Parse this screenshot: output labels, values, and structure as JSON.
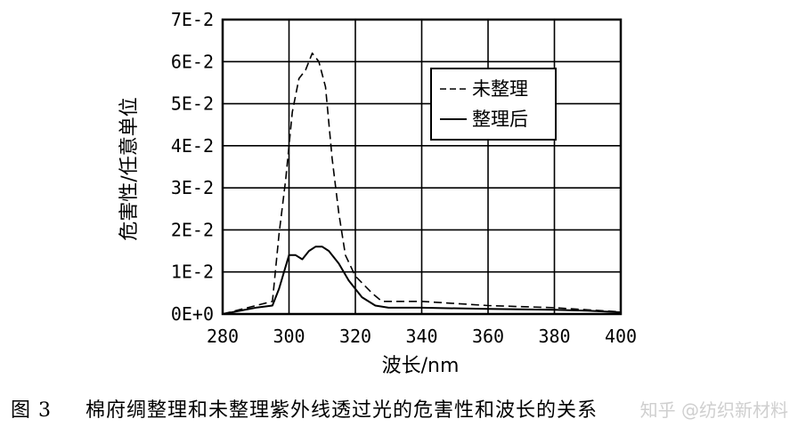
{
  "chart_data": {
    "type": "line",
    "xlabel": "波长/nm",
    "ylabel": "危害性/任意单位",
    "xlim": [
      280,
      400
    ],
    "ylim": [
      0,
      0.07
    ],
    "x_ticks": [
      "280",
      "300",
      "320",
      "340",
      "360",
      "380",
      "400"
    ],
    "y_ticks": [
      "0E+0",
      "1E-2",
      "2E-2",
      "3E-2",
      "4E-2",
      "5E-2",
      "6E-2",
      "7E-2"
    ],
    "grid": true,
    "legend_position": "top-right",
    "series": [
      {
        "name": "未整理",
        "style": "dashed",
        "color": "#000000",
        "points": [
          [
            280,
            0.0
          ],
          [
            290,
            0.002
          ],
          [
            295,
            0.003
          ],
          [
            297,
            0.019
          ],
          [
            299,
            0.032
          ],
          [
            301,
            0.048
          ],
          [
            303,
            0.056
          ],
          [
            305,
            0.058
          ],
          [
            307,
            0.062
          ],
          [
            309,
            0.06
          ],
          [
            311,
            0.054
          ],
          [
            313,
            0.037
          ],
          [
            315,
            0.024
          ],
          [
            317,
            0.014
          ],
          [
            320,
            0.009
          ],
          [
            325,
            0.005
          ],
          [
            328,
            0.003
          ],
          [
            340,
            0.003
          ],
          [
            360,
            0.002
          ],
          [
            380,
            0.0015
          ],
          [
            390,
            0.001
          ],
          [
            400,
            0.0005
          ]
        ]
      },
      {
        "name": "整理后",
        "style": "solid",
        "color": "#000000",
        "points": [
          [
            280,
            0.0
          ],
          [
            290,
            0.0015
          ],
          [
            295,
            0.002
          ],
          [
            297,
            0.006
          ],
          [
            300,
            0.014
          ],
          [
            302,
            0.014
          ],
          [
            304,
            0.013
          ],
          [
            306,
            0.015
          ],
          [
            308,
            0.016
          ],
          [
            310,
            0.016
          ],
          [
            312,
            0.015
          ],
          [
            315,
            0.012
          ],
          [
            318,
            0.008
          ],
          [
            322,
            0.004
          ],
          [
            326,
            0.002
          ],
          [
            330,
            0.0015
          ],
          [
            340,
            0.0015
          ],
          [
            360,
            0.0012
          ],
          [
            380,
            0.001
          ],
          [
            390,
            0.0008
          ],
          [
            400,
            0.0004
          ]
        ]
      }
    ]
  },
  "caption": {
    "label": "图 3",
    "text": "棉府绸整理和未整理紫外线透过光的危害性和波长的关系"
  },
  "watermark": "知乎 @纺织新材料"
}
